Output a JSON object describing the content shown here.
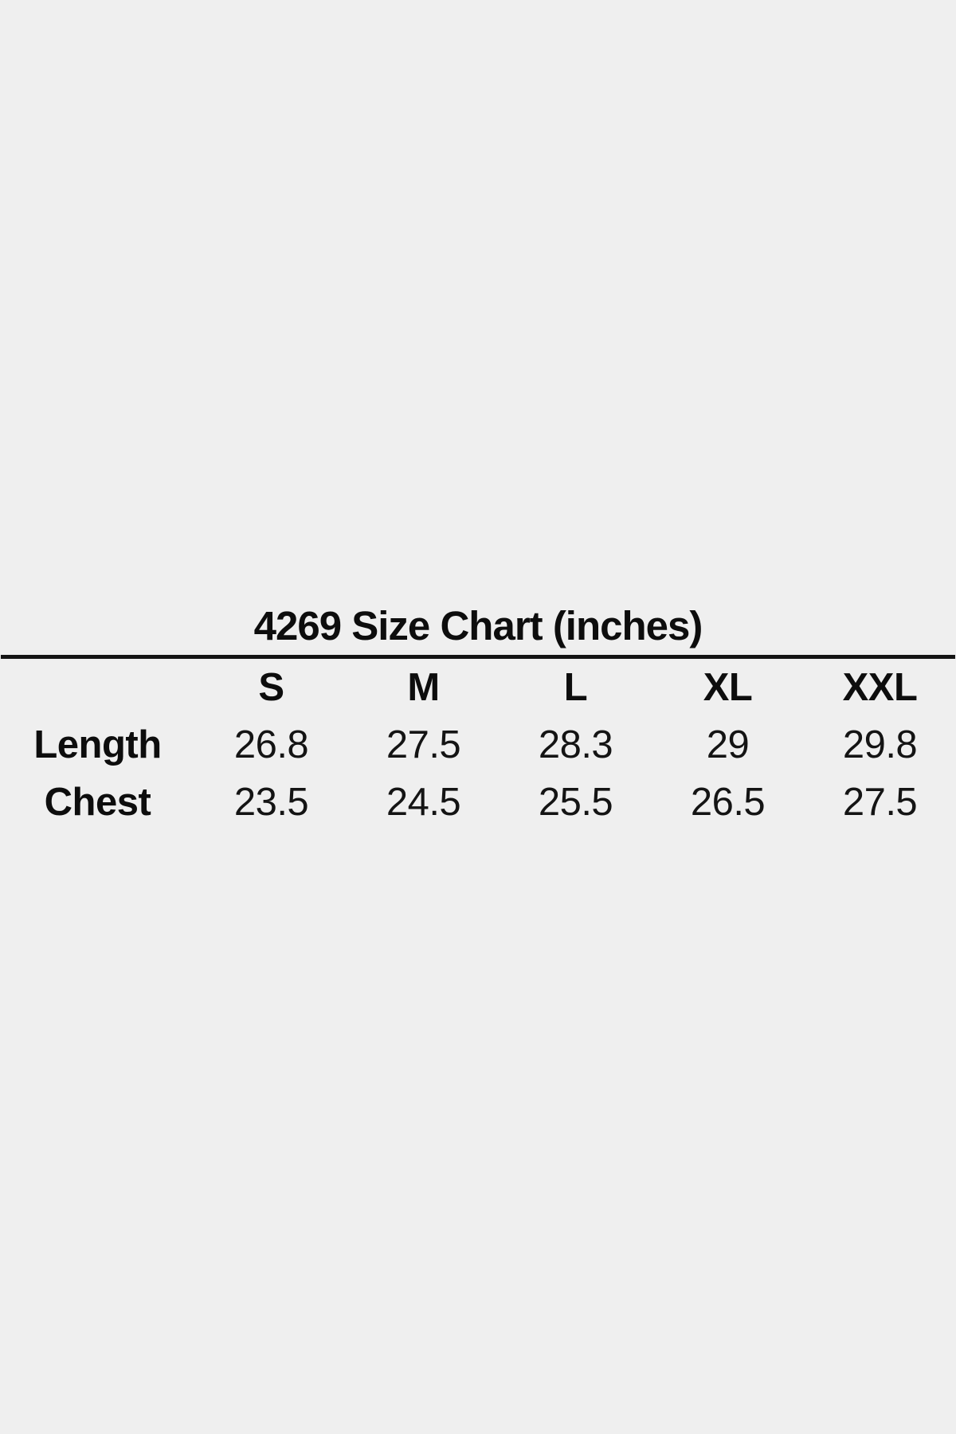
{
  "page": {
    "background_color": "#efefef",
    "text_color": "#121212",
    "rule_color": "#141414"
  },
  "chart_data": {
    "type": "table",
    "title": "4269 Size Chart (inches)",
    "unit": "inches",
    "product_code": "4269",
    "columns": [
      "S",
      "M",
      "L",
      "XL",
      "XXL"
    ],
    "rows": [
      {
        "label": "Length",
        "values": [
          "26.8",
          "27.5",
          "28.3",
          "29",
          "29.8"
        ]
      },
      {
        "label": "Chest",
        "values": [
          "23.5",
          "24.5",
          "25.5",
          "26.5",
          "27.5"
        ]
      }
    ]
  }
}
